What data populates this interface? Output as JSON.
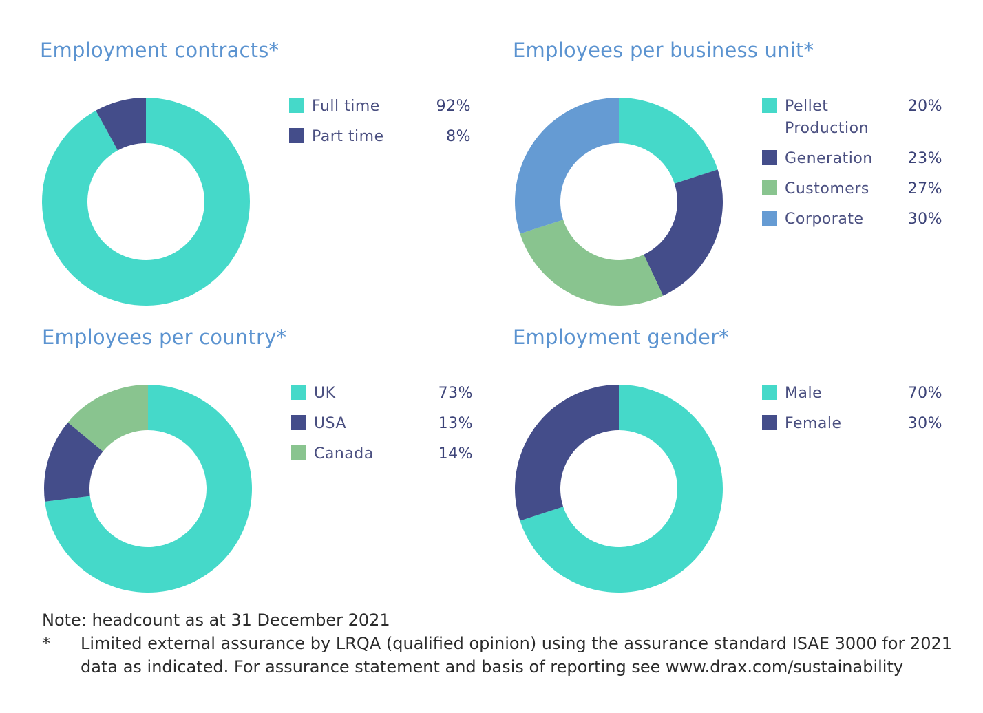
{
  "chart_data": [
    {
      "type": "pie",
      "style": "donut",
      "title": "Employment contracts*",
      "categories": [
        "Full time",
        "Part time"
      ],
      "values": [
        92,
        8
      ],
      "value_labels": [
        "92%",
        "8%"
      ],
      "colors": [
        "#45d9c9",
        "#444d8a"
      ],
      "legend": "right"
    },
    {
      "type": "pie",
      "style": "donut",
      "title": "Employees per business unit*",
      "categories": [
        "Pellet Production",
        "Generation",
        "Customers",
        "Corporate"
      ],
      "legend_label_lines": [
        [
          "Pellet",
          "Production"
        ],
        [
          "Generation"
        ],
        [
          "Customers"
        ],
        [
          "Corporate"
        ]
      ],
      "values": [
        20,
        23,
        27,
        30
      ],
      "value_labels": [
        "20%",
        "23%",
        "27%",
        "30%"
      ],
      "colors": [
        "#45d9c9",
        "#444d8a",
        "#89c48f",
        "#659bd3"
      ],
      "legend": "right"
    },
    {
      "type": "pie",
      "style": "donut",
      "title": "Employees per country*",
      "categories": [
        "UK",
        "USA",
        "Canada"
      ],
      "values": [
        73,
        13,
        14
      ],
      "value_labels": [
        "73%",
        "13%",
        "14%"
      ],
      "colors": [
        "#45d9c9",
        "#444d8a",
        "#89c48f"
      ],
      "legend": "right"
    },
    {
      "type": "pie",
      "style": "donut",
      "title": "Employment gender*",
      "categories": [
        "Male",
        "Female"
      ],
      "values": [
        70,
        30
      ],
      "value_labels": [
        "70%",
        "30%"
      ],
      "colors": [
        "#45d9c9",
        "#444d8a"
      ],
      "legend": "right"
    }
  ],
  "notes": {
    "note": "Note: headcount as at 31 December 2021",
    "footnote_marker": "*",
    "footnote_line1": "Limited external assurance by LRQA (qualified opinion) using the assurance standard ISAE 3000 for 2021",
    "footnote_line2": "data as indicated. For assurance statement and basis of reporting see www.drax.com/sustainability"
  }
}
